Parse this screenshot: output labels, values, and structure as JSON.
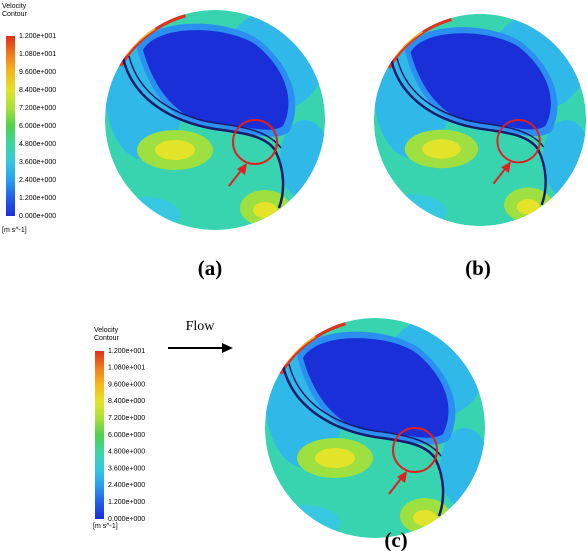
{
  "legends": [
    {
      "title": "Velocity",
      "subtitle": "Contour",
      "ticks": [
        "1.200e+001",
        "1.080e+001",
        "9.600e+000",
        "8.400e+000",
        "7.200e+000",
        "6.000e+000",
        "4.800e+000",
        "3.600e+000",
        "2.400e+000",
        "1.200e+000",
        "0.000e+000"
      ],
      "unit": "[m s^-1]"
    },
    {
      "title": "Velocity",
      "subtitle": "Contour",
      "ticks": [
        "1.200e+001",
        "1.080e+001",
        "9.600e+000",
        "8.400e+000",
        "7.200e+000",
        "6.000e+000",
        "4.800e+000",
        "3.600e+000",
        "2.400e+000",
        "1.200e+000",
        "0.000e+000"
      ],
      "unit": "[m s^-1]"
    }
  ],
  "panels": [
    {
      "label": "(a)"
    },
    {
      "label": "(b)"
    },
    {
      "label": "(c)"
    }
  ],
  "flow_label": "Flow"
}
